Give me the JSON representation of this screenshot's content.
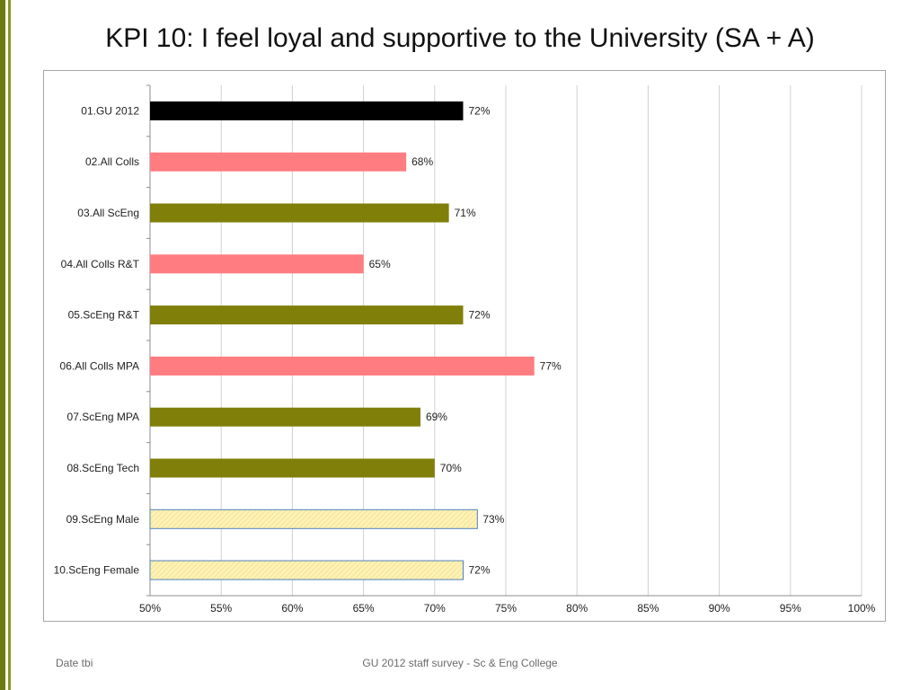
{
  "slide": {
    "title": "KPI 10: I feel loyal and supportive to the University (SA + A)",
    "footer_left": "Date tbi",
    "footer_center": "GU 2012 staff survey -  Sc & Eng College",
    "accent_color": "#6b7a12"
  },
  "chart_data": {
    "type": "bar",
    "orientation": "horizontal",
    "title": "",
    "xlabel": "",
    "ylabel": "",
    "xlim": [
      0.5,
      1.0
    ],
    "x_ticks": [
      "50%",
      "55%",
      "60%",
      "65%",
      "70%",
      "75%",
      "80%",
      "85%",
      "90%",
      "95%",
      "100%"
    ],
    "grid": "vertical",
    "legend": "none",
    "categories": [
      "01.GU 2012",
      "02.All Colls",
      "03.All ScEng",
      "04.All Colls R&T",
      "05.ScEng R&T",
      "06.All Colls MPA",
      "07.ScEng MPA",
      "08.ScEng Tech",
      "09.ScEng Male",
      "10.ScEng Female"
    ],
    "values": [
      0.72,
      0.68,
      0.71,
      0.65,
      0.72,
      0.77,
      0.69,
      0.7,
      0.73,
      0.72
    ],
    "data_labels": [
      "72%",
      "68%",
      "71%",
      "65%",
      "72%",
      "77%",
      "69%",
      "70%",
      "73%",
      "72%"
    ],
    "colors": [
      "#000000",
      "#ff7c80",
      "#7f7f0a",
      "#ff7c80",
      "#7f7f0a",
      "#ff7c80",
      "#7f7f0a",
      "#7f7f0a",
      "#fff2b3",
      "#fff2b3"
    ],
    "outline_colors": [
      "none",
      "none",
      "none",
      "none",
      "none",
      "none",
      "none",
      "none",
      "#4f81bd",
      "#4f81bd"
    ]
  }
}
